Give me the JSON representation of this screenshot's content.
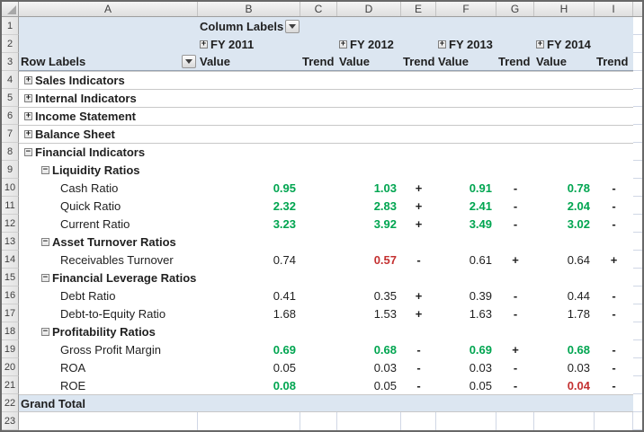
{
  "sheet": {
    "column_letters": [
      "A",
      "B",
      "C",
      "D",
      "E",
      "F",
      "G",
      "H",
      "I"
    ],
    "row_numbers": [
      "1",
      "2",
      "3",
      "4",
      "5",
      "6",
      "7",
      "8",
      "9",
      "10",
      "11",
      "12",
      "13",
      "14",
      "15",
      "16",
      "17",
      "18",
      "19",
      "20",
      "21",
      "22",
      "23"
    ]
  },
  "pivot": {
    "column_labels": "Column Labels",
    "row_labels": "Row Labels",
    "value_header": "Value",
    "trend_header": "Trend",
    "grand_total": "Grand Total",
    "years": [
      {
        "label": "FY 2011",
        "toggle": "+"
      },
      {
        "label": "FY 2012",
        "toggle": "+"
      },
      {
        "label": "FY 2013",
        "toggle": "+"
      },
      {
        "label": "FY 2014",
        "toggle": "+"
      }
    ],
    "rows": [
      {
        "row": 4,
        "label": "Sales Indicators",
        "level": 1,
        "toggle": "+",
        "separator": true
      },
      {
        "row": 5,
        "label": "Internal Indicators",
        "level": 1,
        "toggle": "+",
        "separator": true
      },
      {
        "row": 6,
        "label": "Income Statement",
        "level": 1,
        "toggle": "+",
        "separator": true
      },
      {
        "row": 7,
        "label": "Balance Sheet",
        "level": 1,
        "toggle": "+",
        "separator": true
      },
      {
        "row": 8,
        "label": "Financial Indicators",
        "level": 1,
        "toggle": "−",
        "separator": true
      },
      {
        "row": 9,
        "label": "Liquidity Ratios",
        "level": 2,
        "toggle": "−"
      },
      {
        "row": 10,
        "label": "Cash Ratio",
        "level": 3,
        "values": [
          {
            "v": "0.95",
            "c": "good"
          },
          {
            "v": "1.03",
            "c": "good"
          },
          {
            "v": "0.91",
            "c": "good"
          },
          {
            "v": "0.78",
            "c": "good"
          }
        ],
        "trends": [
          "",
          "+",
          "-",
          "-"
        ]
      },
      {
        "row": 11,
        "label": "Quick Ratio",
        "level": 3,
        "values": [
          {
            "v": "2.32",
            "c": "good"
          },
          {
            "v": "2.83",
            "c": "good"
          },
          {
            "v": "2.41",
            "c": "good"
          },
          {
            "v": "2.04",
            "c": "good"
          }
        ],
        "trends": [
          "",
          "+",
          "-",
          "-"
        ]
      },
      {
        "row": 12,
        "label": "Current Ratio",
        "level": 3,
        "values": [
          {
            "v": "3.23",
            "c": "good"
          },
          {
            "v": "3.92",
            "c": "good"
          },
          {
            "v": "3.49",
            "c": "good"
          },
          {
            "v": "3.02",
            "c": "good"
          }
        ],
        "trends": [
          "",
          "+",
          "-",
          "-"
        ]
      },
      {
        "row": 13,
        "label": "Asset Turnover Ratios",
        "level": 2,
        "toggle": "−"
      },
      {
        "row": 14,
        "label": "Receivables Turnover",
        "level": 3,
        "values": [
          {
            "v": "0.74",
            "c": "norm"
          },
          {
            "v": "0.57",
            "c": "bad"
          },
          {
            "v": "0.61",
            "c": "norm"
          },
          {
            "v": "0.64",
            "c": "norm"
          }
        ],
        "trends": [
          "",
          "-",
          "+",
          "+"
        ]
      },
      {
        "row": 15,
        "label": "Financial Leverage Ratios",
        "level": 2,
        "toggle": "−"
      },
      {
        "row": 16,
        "label": "Debt Ratio",
        "level": 3,
        "values": [
          {
            "v": "0.41",
            "c": "norm"
          },
          {
            "v": "0.35",
            "c": "norm"
          },
          {
            "v": "0.39",
            "c": "norm"
          },
          {
            "v": "0.44",
            "c": "norm"
          }
        ],
        "trends": [
          "",
          "+",
          "-",
          "-"
        ]
      },
      {
        "row": 17,
        "label": "Debt-to-Equity Ratio",
        "level": 3,
        "values": [
          {
            "v": "1.68",
            "c": "norm"
          },
          {
            "v": "1.53",
            "c": "norm"
          },
          {
            "v": "1.63",
            "c": "norm"
          },
          {
            "v": "1.78",
            "c": "norm"
          }
        ],
        "trends": [
          "",
          "+",
          "-",
          "-"
        ]
      },
      {
        "row": 18,
        "label": "Profitability Ratios",
        "level": 2,
        "toggle": "−"
      },
      {
        "row": 19,
        "label": "Gross Profit Margin",
        "level": 3,
        "values": [
          {
            "v": "0.69",
            "c": "good"
          },
          {
            "v": "0.68",
            "c": "good"
          },
          {
            "v": "0.69",
            "c": "good"
          },
          {
            "v": "0.68",
            "c": "good"
          }
        ],
        "trends": [
          "",
          "-",
          "+",
          "-"
        ]
      },
      {
        "row": 20,
        "label": "ROA",
        "level": 3,
        "values": [
          {
            "v": "0.05",
            "c": "norm"
          },
          {
            "v": "0.03",
            "c": "norm"
          },
          {
            "v": "0.03",
            "c": "norm"
          },
          {
            "v": "0.03",
            "c": "norm"
          }
        ],
        "trends": [
          "",
          "-",
          "-",
          "-"
        ]
      },
      {
        "row": 21,
        "label": "ROE",
        "level": 3,
        "values": [
          {
            "v": "0.08",
            "c": "good"
          },
          {
            "v": "0.05",
            "c": "norm"
          },
          {
            "v": "0.05",
            "c": "norm"
          },
          {
            "v": "0.04",
            "c": "bad"
          }
        ],
        "trends": [
          "",
          "-",
          "-",
          "-"
        ]
      }
    ]
  },
  "colors": {
    "good": "#00A550",
    "bad": "#C43131",
    "text": "#1F1F1F",
    "header_fill": "#DCE6F1"
  }
}
